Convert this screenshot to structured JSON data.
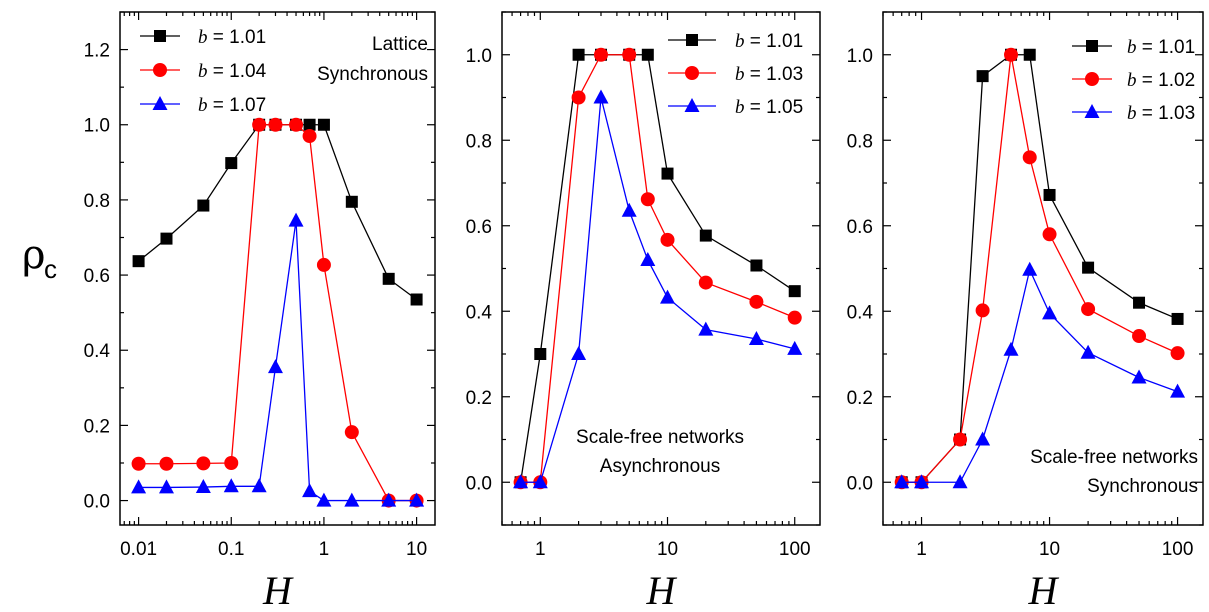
{
  "figure": {
    "ylabel_main": "ρ",
    "ylabel_sub": "c",
    "xlabel": "H"
  },
  "colors": {
    "black": "#000000",
    "red": "#ff0000",
    "blue": "#0000ff"
  },
  "chart_data": [
    {
      "type": "line",
      "xscale": "log",
      "xlim": [
        0.0063,
        15.8
      ],
      "ylim": [
        -0.065,
        1.3
      ],
      "xticks": [
        0.01,
        0.1,
        1,
        10
      ],
      "xtick_labels": [
        "0.01",
        "0.1",
        "1",
        "10"
      ],
      "yticks": [
        0.0,
        0.2,
        0.4,
        0.6,
        0.8,
        1.0,
        1.2
      ],
      "ytick_labels": [
        "0.0",
        "0.2",
        "0.4",
        "0.6",
        "0.8",
        "1.0",
        "1.2"
      ],
      "xlabel": "H",
      "legend": "top-left",
      "annotations": [
        "Lattice",
        "Synchronous"
      ],
      "annotation_position": "top-right",
      "series": [
        {
          "name": "b = 1.01",
          "b_label": "b",
          "value_label": " = 1.01",
          "color": "black",
          "marker": "square",
          "x": [
            0.01,
            0.02,
            0.05,
            0.1,
            0.2,
            0.3,
            0.5,
            0.7,
            1,
            2,
            5,
            10
          ],
          "y": [
            0.637,
            0.697,
            0.785,
            0.898,
            1.0,
            1.0,
            1.0,
            1.0,
            1.0,
            0.795,
            0.59,
            0.535
          ]
        },
        {
          "name": "b = 1.04",
          "b_label": "b",
          "value_label": " = 1.04",
          "color": "red",
          "marker": "circle",
          "x": [
            0.01,
            0.02,
            0.05,
            0.1,
            0.2,
            0.3,
            0.5,
            0.7,
            1,
            2,
            5,
            10
          ],
          "y": [
            0.098,
            0.098,
            0.099,
            0.1,
            1.0,
            1.0,
            1.0,
            0.97,
            0.627,
            0.182,
            0.0,
            0.0
          ]
        },
        {
          "name": "b = 1.07",
          "b_label": "b",
          "value_label": " = 1.07",
          "color": "blue",
          "marker": "triangle",
          "x": [
            0.01,
            0.02,
            0.05,
            0.1,
            0.2,
            0.3,
            0.5,
            0.7,
            1,
            2,
            5,
            10
          ],
          "y": [
            0.035,
            0.035,
            0.036,
            0.038,
            0.038,
            0.355,
            0.745,
            0.025,
            0.0,
            0.0,
            0.0,
            0.0
          ]
        }
      ]
    },
    {
      "type": "line",
      "xscale": "log",
      "xlim": [
        0.5,
        158
      ],
      "ylim": [
        -0.1,
        1.1
      ],
      "xticks": [
        1,
        10,
        100
      ],
      "xtick_labels": [
        "1",
        "10",
        "100"
      ],
      "yticks": [
        0.0,
        0.2,
        0.4,
        0.6,
        0.8,
        1.0
      ],
      "ytick_labels": [
        "0.0",
        "0.2",
        "0.4",
        "0.6",
        "0.8",
        "1.0"
      ],
      "xlabel": "H",
      "legend": "top-right",
      "annotations": [
        "Scale-free networks",
        "Asynchronous"
      ],
      "annotation_position": "bottom-center",
      "series": [
        {
          "name": "b = 1.01",
          "b_label": "b",
          "value_label": " = 1.01",
          "color": "black",
          "marker": "square",
          "x": [
            0.7,
            1,
            2,
            3,
            5,
            7,
            10,
            20,
            50,
            100
          ],
          "y": [
            0.0,
            0.3,
            1.0,
            1.0,
            1.0,
            1.0,
            0.722,
            0.577,
            0.507,
            0.447
          ]
        },
        {
          "name": "b = 1.03",
          "b_label": "b",
          "value_label": " = 1.03",
          "color": "red",
          "marker": "circle",
          "x": [
            0.7,
            1,
            2,
            3,
            5,
            7,
            10,
            20,
            50,
            100
          ],
          "y": [
            0.0,
            0.0,
            0.9,
            1.0,
            1.0,
            0.662,
            0.567,
            0.467,
            0.422,
            0.385
          ]
        },
        {
          "name": "b = 1.05",
          "b_label": "b",
          "value_label": " = 1.05",
          "color": "blue",
          "marker": "triangle",
          "x": [
            0.7,
            1,
            2,
            3,
            5,
            7,
            10,
            20,
            50,
            100
          ],
          "y": [
            0.0,
            0.0,
            0.3,
            0.9,
            0.635,
            0.52,
            0.432,
            0.357,
            0.335,
            0.312
          ]
        }
      ]
    },
    {
      "type": "line",
      "xscale": "log",
      "xlim": [
        0.5,
        158
      ],
      "ylim": [
        -0.1,
        1.1
      ],
      "xticks": [
        1,
        10,
        100
      ],
      "xtick_labels": [
        "1",
        "10",
        "100"
      ],
      "yticks": [
        0.0,
        0.2,
        0.4,
        0.6,
        0.8,
        1.0
      ],
      "ytick_labels": [
        "0.0",
        "0.2",
        "0.4",
        "0.6",
        "0.8",
        "1.0"
      ],
      "xlabel": "H",
      "legend": "top-right",
      "annotations": [
        "Scale-free networks",
        "Synchronous"
      ],
      "annotation_position": "bottom-right",
      "series": [
        {
          "name": "b = 1.01",
          "b_label": "b",
          "value_label": " = 1.01",
          "color": "black",
          "marker": "square",
          "x": [
            0.7,
            1,
            2,
            3,
            5,
            7,
            10,
            20,
            50,
            100
          ],
          "y": [
            0.0,
            0.0,
            0.1,
            0.95,
            1.0,
            1.0,
            0.672,
            0.502,
            0.42,
            0.382
          ]
        },
        {
          "name": "b = 1.02",
          "b_label": "b",
          "value_label": " = 1.02",
          "color": "red",
          "marker": "circle",
          "x": [
            0.7,
            1,
            2,
            3,
            5,
            7,
            10,
            20,
            50,
            100
          ],
          "y": [
            0.0,
            0.0,
            0.1,
            0.402,
            1.0,
            0.76,
            0.58,
            0.405,
            0.342,
            0.302
          ]
        },
        {
          "name": "b = 1.03",
          "b_label": "b",
          "value_label": " = 1.03",
          "color": "blue",
          "marker": "triangle",
          "x": [
            0.7,
            1,
            2,
            3,
            5,
            7,
            10,
            20,
            50,
            100
          ],
          "y": [
            0.0,
            0.0,
            0.0,
            0.1,
            0.31,
            0.497,
            0.395,
            0.303,
            0.245,
            0.212
          ]
        }
      ]
    }
  ]
}
